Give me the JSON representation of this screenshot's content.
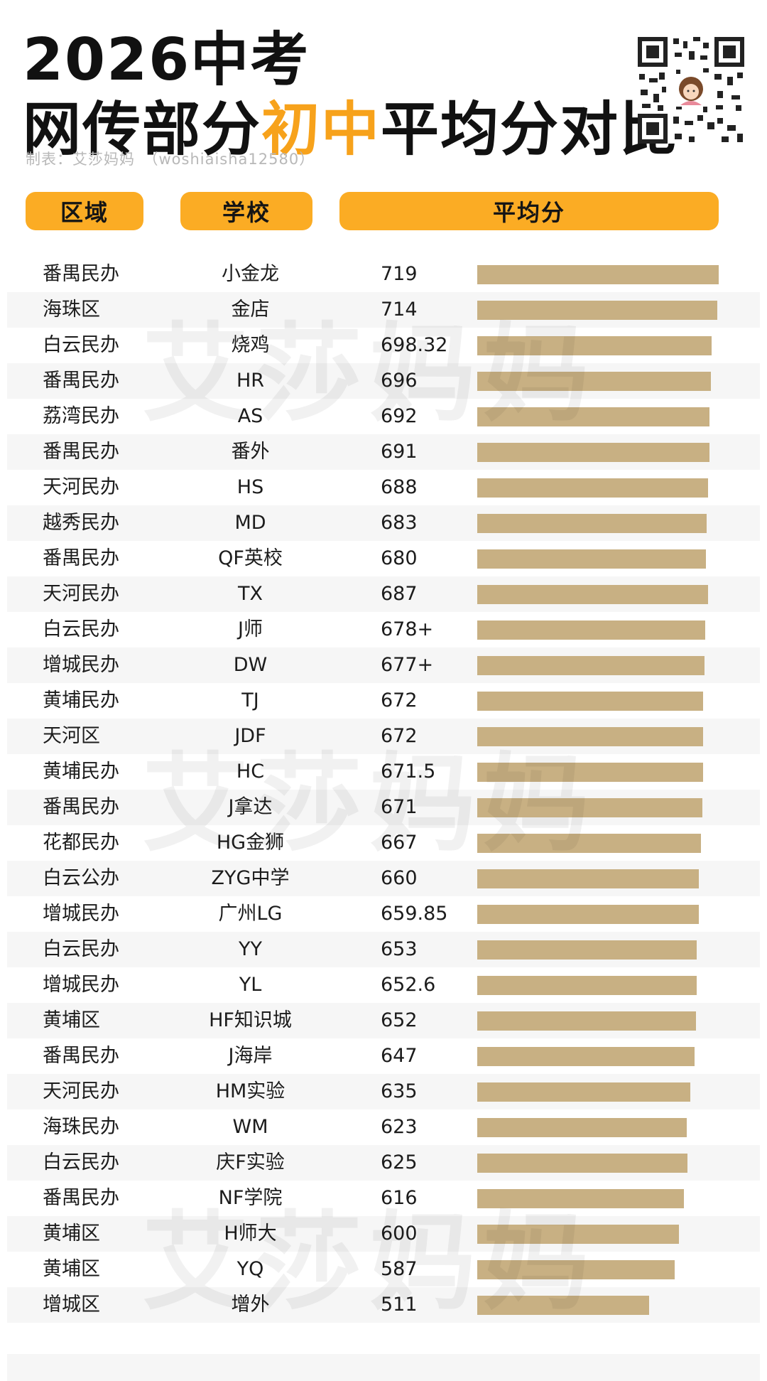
{
  "header": {
    "title_line1": "2026中考",
    "title_line2_a": "网传部分",
    "title_line2_highlight": "初中",
    "title_line2_b": "平均分对比",
    "credit": "制表：艾莎妈妈　（woshiaisha12580）",
    "qr_icon": "qr-code-with-avatar"
  },
  "watermark": "艾莎妈妈",
  "colors": {
    "accent": "#f7a21b",
    "header_fill": "#fbac24",
    "bar": "#c8b083",
    "stripe": "#f6f6f6"
  },
  "chart_data": {
    "type": "bar",
    "orientation": "horizontal",
    "columns": [
      "区域",
      "学校",
      "平均分"
    ],
    "rows": [
      {
        "region": "番禺民办",
        "school": "小金龙",
        "score_label": "719",
        "value": 719
      },
      {
        "region": "海珠区",
        "school": "金店",
        "score_label": "714",
        "value": 714
      },
      {
        "region": "白云民办",
        "school": "烧鸡",
        "score_label": "698.32",
        "value": 698.32
      },
      {
        "region": "番禺民办",
        "school": "HR",
        "score_label": "696",
        "value": 696
      },
      {
        "region": "荔湾民办",
        "school": "AS",
        "score_label": "692",
        "value": 692
      },
      {
        "region": "番禺民办",
        "school": "番外",
        "score_label": "691",
        "value": 691
      },
      {
        "region": "天河民办",
        "school": "HS",
        "score_label": "688",
        "value": 688
      },
      {
        "region": "越秀民办",
        "school": "MD",
        "score_label": "683",
        "value": 683
      },
      {
        "region": "番禺民办",
        "school": "QF英校",
        "score_label": "680",
        "value": 680
      },
      {
        "region": "天河民办",
        "school": "TX",
        "score_label": "687",
        "value": 687
      },
      {
        "region": "白云民办",
        "school": "J师",
        "score_label": "678+",
        "value": 678
      },
      {
        "region": "增城民办",
        "school": "DW",
        "score_label": "677+",
        "value": 677
      },
      {
        "region": "黄埔民办",
        "school": "TJ",
        "score_label": "672",
        "value": 672
      },
      {
        "region": "天河区",
        "school": "JDF",
        "score_label": "672",
        "value": 672
      },
      {
        "region": "黄埔民办",
        "school": "HC",
        "score_label": "671.5",
        "value": 671.5
      },
      {
        "region": "番禺民办",
        "school": "J拿达",
        "score_label": "671",
        "value": 671
      },
      {
        "region": "花都民办",
        "school": "HG金狮",
        "score_label": "667",
        "value": 667
      },
      {
        "region": "白云公办",
        "school": "ZYG中学",
        "score_label": "660",
        "value": 660
      },
      {
        "region": "增城民办",
        "school": "广州LG",
        "score_label": "659.85",
        "value": 659.85
      },
      {
        "region": "白云民办",
        "school": "YY",
        "score_label": "653",
        "value": 653
      },
      {
        "region": "增城民办",
        "school": "YL",
        "score_label": "652.6",
        "value": 652.6
      },
      {
        "region": "黄埔区",
        "school": "HF知识城",
        "score_label": "652",
        "value": 652
      },
      {
        "region": "番禺民办",
        "school": "J海岸",
        "score_label": "647",
        "value": 647
      },
      {
        "region": "天河民办",
        "school": "HM实验",
        "score_label": "635",
        "value": 635
      },
      {
        "region": "海珠民办",
        "school": "WM",
        "score_label": "623",
        "value": 623
      },
      {
        "region": "白云民办",
        "school": "庆F实验",
        "score_label": "625",
        "value": 625
      },
      {
        "region": "番禺民办",
        "school": "NF学院",
        "score_label": "616",
        "value": 616
      },
      {
        "region": "黄埔区",
        "school": "H师大",
        "score_label": "600",
        "value": 600
      },
      {
        "region": "黄埔区",
        "school": "YQ",
        "score_label": "587",
        "value": 587
      },
      {
        "region": "增城区",
        "school": "增外",
        "score_label": "511",
        "value": 511
      }
    ]
  }
}
